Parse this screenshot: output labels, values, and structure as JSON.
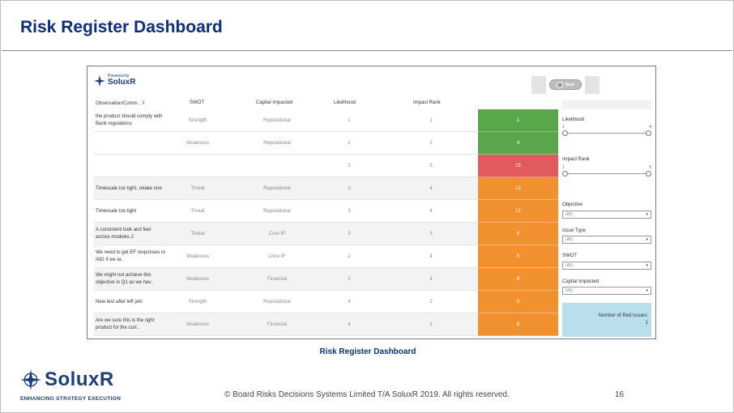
{
  "slide": {
    "title": "Risk Register Dashboard",
    "caption": "Risk Register Dashboard",
    "copyright": "© Board Risks Decisions Systems Limited T/A SoluxR 2019. All rights reserved.",
    "page_number": "16"
  },
  "brand": {
    "name": "SoluxR",
    "tagline": "ENHANCING STRATEGY EXECUTION",
    "color": "#1c3f7a"
  },
  "dashboard": {
    "logo": {
      "powered_by": "Powered by",
      "name": "SoluxR"
    },
    "next_button": "Next",
    "headers": {
      "observation": "Observation/Comm..",
      "swot": "SWOT",
      "capital": "Capital Impacted",
      "likelihood": "Likelihood",
      "impact": "Impact Rank"
    },
    "rows": [
      {
        "obs": "the product should comply with Bank regulations",
        "swot": "Strength",
        "capital": "Reputational",
        "likelihood": "1",
        "impact": "1",
        "risk": "1",
        "color": "#5aa64a",
        "alt": false
      },
      {
        "obs": "",
        "swot": "Weakness",
        "capital": "Reputational",
        "likelihood": "2",
        "impact": "2",
        "risk": "4",
        "color": "#5aa64a",
        "alt": false
      },
      {
        "obs": "",
        "swot": "",
        "capital": "",
        "likelihood": "3",
        "impact": "5",
        "risk": "15",
        "color": "#e05a5e",
        "alt": false
      },
      {
        "obs": "Timescale too tight, retake one",
        "swot": "Threat",
        "capital": "Reputational",
        "likelihood": "3",
        "impact": "4",
        "risk": "12",
        "color": "#f0902f",
        "alt": true
      },
      {
        "obs": "Timescale too tight",
        "swot": "Threat",
        "capital": "Reputational",
        "likelihood": "3",
        "impact": "4",
        "risk": "12",
        "color": "#f0902f",
        "alt": false
      },
      {
        "obs": "A consistent look and feel across modules 2",
        "swot": "Threat",
        "capital": "Core IP",
        "likelihood": "3",
        "impact": "3",
        "risk": "9",
        "color": "#f0902f",
        "alt": true
      },
      {
        "obs": "We need to get EF responses to ING if we ar..",
        "swot": "Weakness",
        "capital": "Core IP",
        "likelihood": "2",
        "impact": "4",
        "risk": "8",
        "color": "#f0902f",
        "alt": false
      },
      {
        "obs": "We might not achieve this objective in Q1 as we hav..",
        "swot": "Weakness",
        "capital": "Financial",
        "likelihood": "2",
        "impact": "4",
        "risk": "8",
        "color": "#f0902f",
        "alt": true
      },
      {
        "obs": "New test after left join",
        "swot": "Strength",
        "capital": "Reputational",
        "likelihood": "4",
        "impact": "2",
        "risk": "8",
        "color": "#f0902f",
        "alt": false
      },
      {
        "obs": "Are we sure this is the right product for the curr..",
        "swot": "Weakness",
        "capital": "Financial",
        "likelihood": "4",
        "impact": "2",
        "risk": "8",
        "color": "#f0902f",
        "alt": true
      }
    ],
    "filters": {
      "likelihood": {
        "label": "Likelihood",
        "min": "1",
        "max": "4"
      },
      "impact": {
        "label": "Impact Rank",
        "min": "1",
        "max": "5"
      },
      "objective": {
        "label": "Objective",
        "value": "(All)"
      },
      "issue_type": {
        "label": "Issue  Type",
        "value": "(All)"
      },
      "swot": {
        "label": "SWOT",
        "value": "(All)"
      },
      "capital": {
        "label": "Capital Impacted",
        "value": "(All)"
      }
    },
    "red_issues": {
      "label": "Number of Red Issues:",
      "value": "1",
      "color": "#b9deec"
    }
  }
}
